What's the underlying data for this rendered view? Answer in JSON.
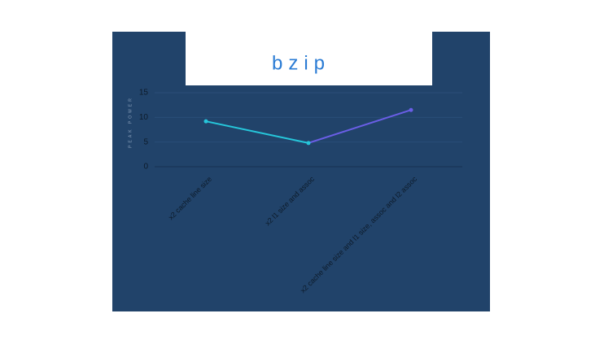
{
  "chart_data": {
    "type": "line",
    "title": "bzip",
    "y_label": "PEAK POWER",
    "categories": [
      "x2 cache line size",
      "x2 l1 size and assoc",
      "x2 cache line size and l1 size, assoc and l2 assoc"
    ],
    "series": [
      {
        "values": [
          9.2,
          4.8,
          11.5
        ],
        "color": "#26c6da"
      }
    ],
    "segment_colors": [
      "#26c6da",
      "#6a5ee6"
    ],
    "ylim": [
      0,
      15
    ],
    "yticks": [
      0,
      5,
      10,
      15
    ],
    "grid": true
  }
}
